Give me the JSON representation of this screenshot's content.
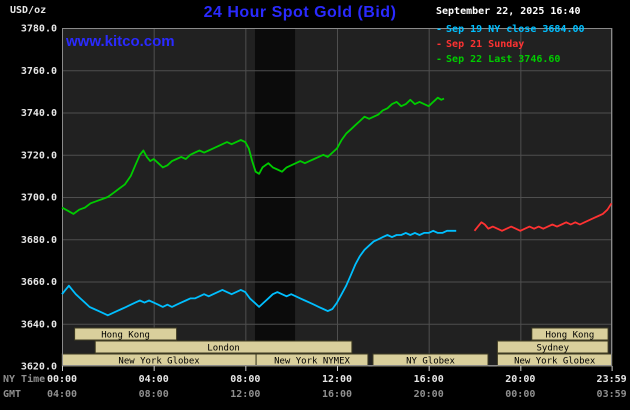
{
  "header": {
    "unit_label": "USD/oz",
    "title": "24 Hour Spot Gold (Bid)",
    "datetime": "September 22, 2025 16:40",
    "watermark": "www.kitco.com",
    "accent_color": "#2a2aff"
  },
  "legend": {
    "items": [
      {
        "marker": "-",
        "label": "Sep 19 NY close 3684.00",
        "color": "#00bfff"
      },
      {
        "marker": "-",
        "label": "Sep 21 Sunday",
        "color": "#ff3232"
      },
      {
        "marker": "-",
        "label": "Sep 22 Last 3746.60",
        "color": "#00cc00"
      }
    ]
  },
  "axes": {
    "ny_time_label": "NY Time",
    "gmt_label": "GMT",
    "ny_ticks": [
      "00:00",
      "04:00",
      "08:00",
      "12:00",
      "16:00",
      "20:00",
      "23:59"
    ],
    "gmt_ticks": [
      "04:00",
      "08:00",
      "12:00",
      "16:00",
      "20:00",
      "00:00",
      "03:59"
    ],
    "y_ticks": [
      "3780.0",
      "3760.0",
      "3740.0",
      "3720.0",
      "3700.0",
      "3680.0",
      "3660.0",
      "3640.0",
      "3620.0"
    ]
  },
  "chart_data": {
    "type": "line",
    "title": "24 Hour Spot Gold (Bid)",
    "xlabel": "NY Time",
    "ylabel": "USD/oz",
    "xlim": [
      0,
      24
    ],
    "ylim": [
      3620,
      3780
    ],
    "x_grid": [
      0,
      4,
      8,
      12,
      16,
      20,
      23.983
    ],
    "y_grid": [
      3780,
      3760,
      3740,
      3720,
      3700,
      3680,
      3660,
      3640,
      3620
    ],
    "grid": true,
    "legend_position": "top-right",
    "colors": {
      "plot_bg": "#212121",
      "band": "#0b0b0b",
      "grid": "#4f4f4f",
      "border": "#8a8a8a",
      "tick": "#cfcfcf",
      "session_fill": "#d9cf9c",
      "session_border": "#3d3a22",
      "session_text": "#000000",
      "axis_text": "#e6e6e6",
      "axis_dim": "#8f8f8f"
    },
    "bands": [
      [
        8.42,
        10.17
      ]
    ],
    "sessions": [
      {
        "row": 0,
        "label": "Hong Kong",
        "start": 0.55,
        "end": 5.0
      },
      {
        "row": 0,
        "label": "Hong Kong",
        "start": 20.5,
        "end": 23.83
      },
      {
        "row": 1,
        "label": "London",
        "start": 1.45,
        "end": 12.65
      },
      {
        "row": 1,
        "label": "Sydney",
        "start": 19.0,
        "end": 23.83
      },
      {
        "row": 2,
        "label": "New York Globex",
        "start": 0.0,
        "end": 8.47
      },
      {
        "row": 2,
        "label": "New York NYMEX",
        "start": 8.47,
        "end": 13.35
      },
      {
        "row": 2,
        "label": "NY Globex",
        "start": 13.57,
        "end": 18.59
      },
      {
        "row": 2,
        "label": "New York Globex",
        "start": 19.0,
        "end": 24.0
      }
    ],
    "series": [
      {
        "key": "sep19-ny-close",
        "name": "Sep 19 NY close 3684.00",
        "color": "#00bfff",
        "points": [
          [
            0,
            3654
          ],
          [
            0.15,
            3656
          ],
          [
            0.3,
            3658
          ],
          [
            0.45,
            3656
          ],
          [
            0.6,
            3654
          ],
          [
            0.8,
            3652
          ],
          [
            1,
            3650
          ],
          [
            1.2,
            3648
          ],
          [
            1.4,
            3647
          ],
          [
            1.6,
            3646
          ],
          [
            1.8,
            3645
          ],
          [
            2,
            3644
          ],
          [
            2.2,
            3645
          ],
          [
            2.4,
            3646
          ],
          [
            2.6,
            3647
          ],
          [
            2.8,
            3648
          ],
          [
            3,
            3649
          ],
          [
            3.2,
            3650
          ],
          [
            3.4,
            3651
          ],
          [
            3.6,
            3650
          ],
          [
            3.8,
            3651
          ],
          [
            4,
            3650
          ],
          [
            4.2,
            3649
          ],
          [
            4.4,
            3648
          ],
          [
            4.6,
            3649
          ],
          [
            4.8,
            3648
          ],
          [
            5,
            3649
          ],
          [
            5.2,
            3650
          ],
          [
            5.4,
            3651
          ],
          [
            5.6,
            3652
          ],
          [
            5.8,
            3652
          ],
          [
            6,
            3653
          ],
          [
            6.2,
            3654
          ],
          [
            6.4,
            3653
          ],
          [
            6.6,
            3654
          ],
          [
            6.8,
            3655
          ],
          [
            7,
            3656
          ],
          [
            7.2,
            3655
          ],
          [
            7.4,
            3654
          ],
          [
            7.6,
            3655
          ],
          [
            7.8,
            3656
          ],
          [
            8,
            3655
          ],
          [
            8.2,
            3652
          ],
          [
            8.4,
            3650
          ],
          [
            8.6,
            3648
          ],
          [
            8.8,
            3650
          ],
          [
            9,
            3652
          ],
          [
            9.2,
            3654
          ],
          [
            9.4,
            3655
          ],
          [
            9.6,
            3654
          ],
          [
            9.8,
            3653
          ],
          [
            10,
            3654
          ],
          [
            10.2,
            3653
          ],
          [
            10.4,
            3652
          ],
          [
            10.6,
            3651
          ],
          [
            10.8,
            3650
          ],
          [
            11,
            3649
          ],
          [
            11.2,
            3648
          ],
          [
            11.4,
            3647
          ],
          [
            11.6,
            3646
          ],
          [
            11.8,
            3647
          ],
          [
            12,
            3650
          ],
          [
            12.2,
            3654
          ],
          [
            12.4,
            3658
          ],
          [
            12.6,
            3663
          ],
          [
            12.8,
            3668
          ],
          [
            13,
            3672
          ],
          [
            13.2,
            3675
          ],
          [
            13.4,
            3677
          ],
          [
            13.6,
            3679
          ],
          [
            13.8,
            3680
          ],
          [
            14,
            3681
          ],
          [
            14.2,
            3682
          ],
          [
            14.4,
            3681
          ],
          [
            14.6,
            3682
          ],
          [
            14.8,
            3682
          ],
          [
            15,
            3683
          ],
          [
            15.2,
            3682
          ],
          [
            15.4,
            3683
          ],
          [
            15.6,
            3682
          ],
          [
            15.8,
            3683
          ],
          [
            16,
            3683
          ],
          [
            16.2,
            3684
          ],
          [
            16.4,
            3683
          ],
          [
            16.6,
            3683
          ],
          [
            16.8,
            3684
          ],
          [
            17,
            3684
          ],
          [
            17.2,
            3684
          ]
        ]
      },
      {
        "key": "sep21-sunday",
        "name": "Sep 21 Sunday",
        "color": "#ff3232",
        "points": [
          [
            18,
            3684
          ],
          [
            18.15,
            3686
          ],
          [
            18.3,
            3688
          ],
          [
            18.45,
            3687
          ],
          [
            18.6,
            3685
          ],
          [
            18.8,
            3686
          ],
          [
            19,
            3685
          ],
          [
            19.2,
            3684
          ],
          [
            19.4,
            3685
          ],
          [
            19.6,
            3686
          ],
          [
            19.8,
            3685
          ],
          [
            20,
            3684
          ],
          [
            20.2,
            3685
          ],
          [
            20.4,
            3686
          ],
          [
            20.6,
            3685
          ],
          [
            20.8,
            3686
          ],
          [
            21,
            3685
          ],
          [
            21.2,
            3686
          ],
          [
            21.4,
            3687
          ],
          [
            21.6,
            3686
          ],
          [
            21.8,
            3687
          ],
          [
            22,
            3688
          ],
          [
            22.2,
            3687
          ],
          [
            22.4,
            3688
          ],
          [
            22.6,
            3687
          ],
          [
            22.8,
            3688
          ],
          [
            23,
            3689
          ],
          [
            23.2,
            3690
          ],
          [
            23.4,
            3691
          ],
          [
            23.6,
            3692
          ],
          [
            23.8,
            3694
          ],
          [
            23.98,
            3697
          ]
        ]
      },
      {
        "key": "sep22-last",
        "name": "Sep 22 Last 3746.60",
        "color": "#00cc00",
        "points": [
          [
            0,
            3695
          ],
          [
            0.25,
            3693.5
          ],
          [
            0.5,
            3692
          ],
          [
            0.75,
            3694
          ],
          [
            1,
            3695
          ],
          [
            1.25,
            3697
          ],
          [
            1.5,
            3698
          ],
          [
            1.75,
            3699
          ],
          [
            2,
            3700
          ],
          [
            2.25,
            3702
          ],
          [
            2.5,
            3704
          ],
          [
            2.75,
            3706
          ],
          [
            3,
            3710
          ],
          [
            3.2,
            3715
          ],
          [
            3.4,
            3720
          ],
          [
            3.55,
            3722
          ],
          [
            3.7,
            3719
          ],
          [
            3.85,
            3717
          ],
          [
            4,
            3718
          ],
          [
            4.2,
            3716
          ],
          [
            4.4,
            3714
          ],
          [
            4.6,
            3715
          ],
          [
            4.8,
            3717
          ],
          [
            5,
            3718
          ],
          [
            5.2,
            3719
          ],
          [
            5.4,
            3718
          ],
          [
            5.6,
            3720
          ],
          [
            5.8,
            3721
          ],
          [
            6,
            3722
          ],
          [
            6.2,
            3721
          ],
          [
            6.4,
            3722
          ],
          [
            6.6,
            3723
          ],
          [
            6.8,
            3724
          ],
          [
            7,
            3725
          ],
          [
            7.2,
            3726
          ],
          [
            7.4,
            3725
          ],
          [
            7.6,
            3726
          ],
          [
            7.8,
            3727
          ],
          [
            8,
            3726
          ],
          [
            8.15,
            3723
          ],
          [
            8.3,
            3717
          ],
          [
            8.45,
            3712
          ],
          [
            8.6,
            3711
          ],
          [
            8.75,
            3714
          ],
          [
            9,
            3716
          ],
          [
            9.2,
            3714
          ],
          [
            9.4,
            3713
          ],
          [
            9.6,
            3712
          ],
          [
            9.8,
            3714
          ],
          [
            10,
            3715
          ],
          [
            10.2,
            3716
          ],
          [
            10.4,
            3717
          ],
          [
            10.6,
            3716
          ],
          [
            10.8,
            3717
          ],
          [
            11,
            3718
          ],
          [
            11.2,
            3719
          ],
          [
            11.4,
            3720
          ],
          [
            11.6,
            3719
          ],
          [
            11.8,
            3721
          ],
          [
            12,
            3723
          ],
          [
            12.2,
            3727
          ],
          [
            12.4,
            3730
          ],
          [
            12.6,
            3732
          ],
          [
            12.8,
            3734
          ],
          [
            13,
            3736
          ],
          [
            13.2,
            3738
          ],
          [
            13.4,
            3737
          ],
          [
            13.6,
            3738
          ],
          [
            13.8,
            3739
          ],
          [
            14,
            3741
          ],
          [
            14.2,
            3742
          ],
          [
            14.4,
            3744
          ],
          [
            14.6,
            3745
          ],
          [
            14.8,
            3743
          ],
          [
            15,
            3744
          ],
          [
            15.2,
            3746
          ],
          [
            15.4,
            3744
          ],
          [
            15.6,
            3745
          ],
          [
            15.8,
            3744
          ],
          [
            16,
            3743
          ],
          [
            16.2,
            3745
          ],
          [
            16.4,
            3747
          ],
          [
            16.55,
            3746
          ],
          [
            16.67,
            3746.6
          ]
        ]
      }
    ]
  }
}
